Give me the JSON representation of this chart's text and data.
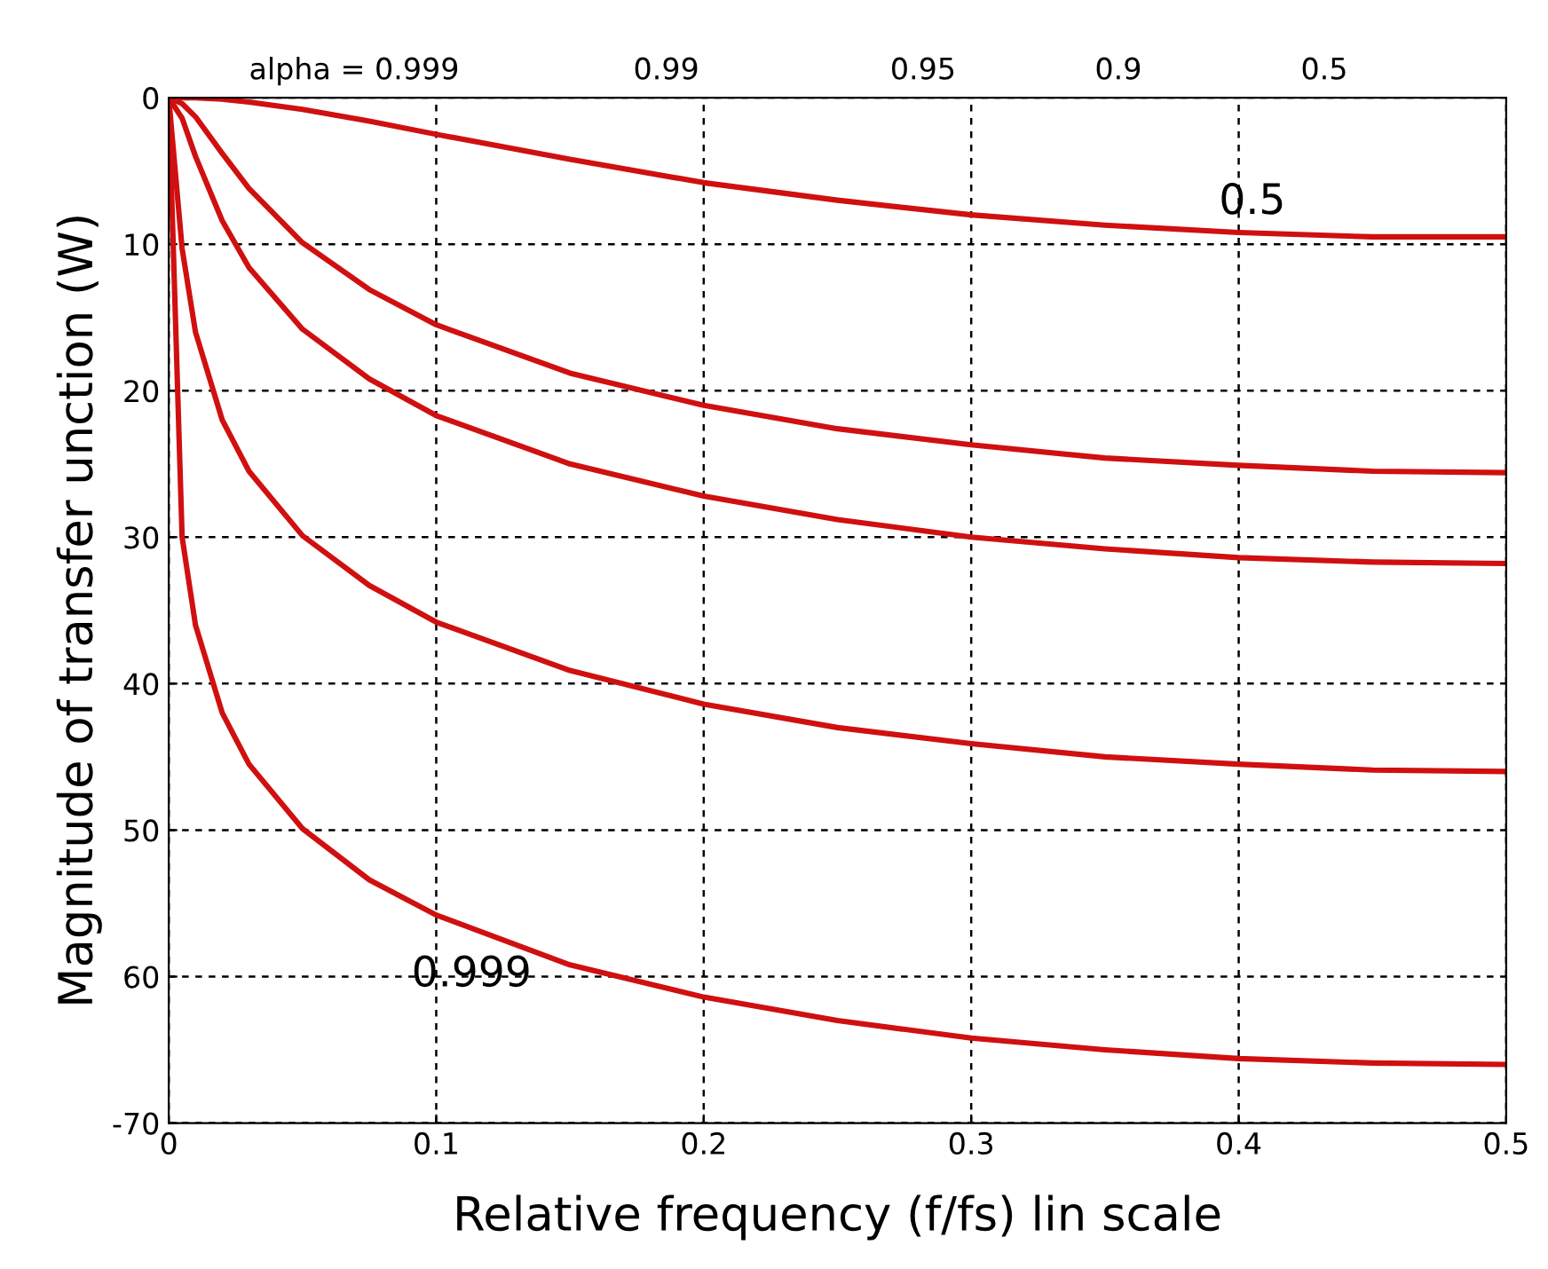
{
  "chart_data": {
    "type": "line",
    "xlabel": "Relative frequency (f/fs) lin scale",
    "ylabel": "Magnitude of transfer unction (W)",
    "x": [
      0,
      0.005,
      0.01,
      0.02,
      0.03,
      0.05,
      0.075,
      0.1,
      0.15,
      0.2,
      0.25,
      0.3,
      0.35,
      0.4,
      0.45,
      0.5
    ],
    "series": [
      {
        "color": "#d01010",
        "values": [
          0,
          0.0,
          0.0,
          -0.1,
          -0.3,
          -0.8,
          -1.6,
          -2.5,
          -4.2,
          -5.8,
          -7.0,
          -8.0,
          -8.7,
          -9.2,
          -9.5,
          -9.5
        ]
      },
      {
        "color": "#d01010",
        "values": [
          0,
          -0.4,
          -1.3,
          -3.8,
          -6.2,
          -9.9,
          -13.1,
          -15.5,
          -18.8,
          -21.0,
          -22.6,
          -23.7,
          -24.6,
          -25.1,
          -25.5,
          -25.6
        ]
      },
      {
        "color": "#d01010",
        "values": [
          0,
          -1.4,
          -4.0,
          -8.4,
          -11.6,
          -15.8,
          -19.2,
          -21.7,
          -25.0,
          -27.2,
          -28.8,
          -30.0,
          -30.8,
          -31.4,
          -31.7,
          -31.8
        ]
      },
      {
        "color": "#d01010",
        "values": [
          0,
          -10.3,
          -16.0,
          -22.0,
          -25.5,
          -29.9,
          -33.3,
          -35.8,
          -39.1,
          -41.4,
          -43.0,
          -44.1,
          -45.0,
          -45.5,
          -45.9,
          -46.0
        ]
      },
      {
        "color": "#d01010",
        "values": [
          0,
          -30.0,
          -36.0,
          -42.0,
          -45.5,
          -49.9,
          -53.4,
          -55.8,
          -59.2,
          -61.4,
          -63.0,
          -64.2,
          -65.0,
          -65.6,
          -65.9,
          -66.0
        ]
      }
    ],
    "xlim": [
      0,
      0.5
    ],
    "xticks": [
      0,
      0.1,
      0.2,
      0.3,
      0.4,
      0.5
    ],
    "ylim": [
      -70,
      0
    ],
    "yticks": [
      {
        "value": -70,
        "label": "-70"
      },
      {
        "value": -60,
        "label": "60"
      },
      {
        "value": -50,
        "label": "50"
      },
      {
        "value": -40,
        "label": "40"
      },
      {
        "value": -30,
        "label": "30"
      },
      {
        "value": -20,
        "label": "20"
      },
      {
        "value": -10,
        "label": "10"
      },
      0
    ],
    "grid": true,
    "marker": "none",
    "line_style": "solid",
    "annotations": [
      "alpha = 0.999",
      "0.99",
      "0.95",
      "0.9",
      "0.5",
      {
        "text": "0.5",
        "x": 0.4,
        "y": -9.2
      },
      {
        "text": "0.999",
        "x": 0.1,
        "y": -55.8
      }
    ]
  }
}
